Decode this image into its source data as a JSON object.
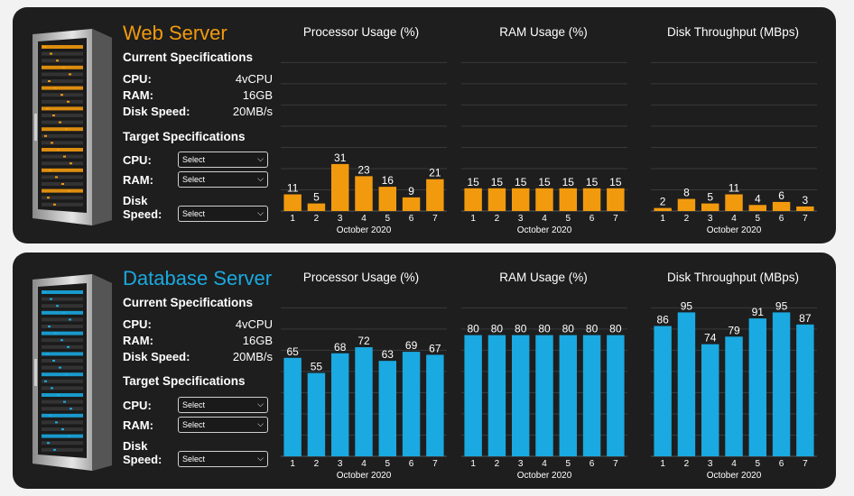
{
  "colors": {
    "panel_bg": "#1e1e1e",
    "web_accent": "#f29a0e",
    "db_accent": "#1aa9e0",
    "grid": "#3a3a3a",
    "text": "#ffffff"
  },
  "servers": [
    {
      "id": "web",
      "name": "Web Server",
      "accent": "#f29a0e",
      "current_heading": "Current Specifications",
      "current": [
        {
          "label": "CPU:",
          "value": "4vCPU"
        },
        {
          "label": "RAM:",
          "value": "16GB"
        },
        {
          "label": "Disk Speed:",
          "value": "20MB/s"
        }
      ],
      "target_heading": "Target Specifications",
      "target": [
        {
          "label": "CPU:",
          "value": "Select"
        },
        {
          "label": "RAM:",
          "value": "Select"
        },
        {
          "label": "Disk Speed:",
          "value": "Select"
        }
      ]
    },
    {
      "id": "db",
      "name": "Database Server",
      "accent": "#1aa9e0",
      "current_heading": "Current Specifications",
      "current": [
        {
          "label": "CPU:",
          "value": "4vCPU"
        },
        {
          "label": "RAM:",
          "value": "16GB"
        },
        {
          "label": "Disk Speed:",
          "value": "20MB/s"
        }
      ],
      "target_heading": "Target Specifications",
      "target": [
        {
          "label": "CPU:",
          "value": "Select"
        },
        {
          "label": "RAM:",
          "value": "Select"
        },
        {
          "label": "Disk Speed:",
          "value": "Select"
        }
      ]
    }
  ],
  "chart_data": [
    {
      "type": "bar",
      "panel": "web",
      "title": "Processor Usage (%)",
      "xlabel": "October 2020",
      "ylabel": "",
      "categories": [
        "1",
        "2",
        "3",
        "4",
        "5",
        "6",
        "7"
      ],
      "values": [
        11,
        5,
        31,
        23,
        16,
        9,
        21
      ],
      "ylim": [
        0,
        100
      ],
      "grid": true,
      "color": "#f29a0e"
    },
    {
      "type": "bar",
      "panel": "web",
      "title": "RAM Usage (%)",
      "xlabel": "October 2020",
      "ylabel": "",
      "categories": [
        "1",
        "2",
        "3",
        "4",
        "5",
        "6",
        "7"
      ],
      "values": [
        15,
        15,
        15,
        15,
        15,
        15,
        15
      ],
      "ylim": [
        0,
        100
      ],
      "grid": true,
      "color": "#f29a0e"
    },
    {
      "type": "bar",
      "panel": "web",
      "title": "Disk Throughput (MBps)",
      "xlabel": "October 2020",
      "ylabel": "",
      "categories": [
        "1",
        "2",
        "3",
        "4",
        "5",
        "6",
        "7"
      ],
      "values": [
        2,
        8,
        5,
        11,
        4,
        6,
        3
      ],
      "ylim": [
        0,
        100
      ],
      "grid": true,
      "color": "#f29a0e"
    },
    {
      "type": "bar",
      "panel": "db",
      "title": "Processor Usage (%)",
      "xlabel": "October 2020",
      "ylabel": "",
      "categories": [
        "1",
        "2",
        "3",
        "4",
        "5",
        "6",
        "7"
      ],
      "values": [
        65,
        55,
        68,
        72,
        63,
        69,
        67
      ],
      "ylim": [
        0,
        100
      ],
      "grid": true,
      "color": "#1aa9e0"
    },
    {
      "type": "bar",
      "panel": "db",
      "title": "RAM Usage (%)",
      "xlabel": "October 2020",
      "ylabel": "",
      "categories": [
        "1",
        "2",
        "3",
        "4",
        "5",
        "6",
        "7"
      ],
      "values": [
        80,
        80,
        80,
        80,
        80,
        80,
        80
      ],
      "ylim": [
        0,
        100
      ],
      "grid": true,
      "color": "#1aa9e0"
    },
    {
      "type": "bar",
      "panel": "db",
      "title": "Disk Throughput (MBps)",
      "xlabel": "October 2020",
      "ylabel": "",
      "categories": [
        "1",
        "2",
        "3",
        "4",
        "5",
        "6",
        "7"
      ],
      "values": [
        86,
        95,
        74,
        79,
        91,
        95,
        87
      ],
      "ylim": [
        0,
        100
      ],
      "grid": true,
      "color": "#1aa9e0"
    }
  ]
}
